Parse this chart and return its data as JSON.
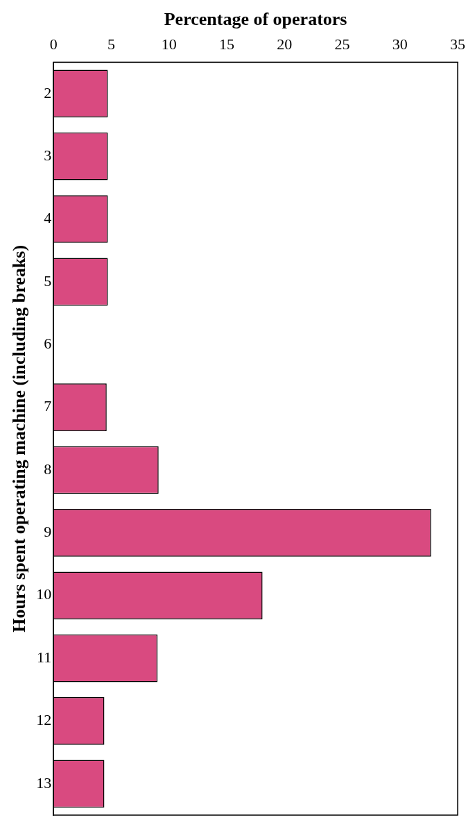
{
  "chart_data": {
    "type": "bar",
    "orientation": "horizontal",
    "xlabel": "Percentage of operators",
    "ylabel": "Hours spent operating machine (including breaks)",
    "categories": [
      "2",
      "3",
      "4",
      "5",
      "6",
      "7",
      "8",
      "9",
      "10",
      "11",
      "12",
      "13"
    ],
    "values": [
      4.7,
      4.7,
      4.7,
      4.7,
      0,
      4.6,
      9.1,
      32.7,
      18.1,
      9.0,
      4.4,
      4.4
    ],
    "color": "#d94a80",
    "xlim": [
      0,
      35
    ],
    "xticks": [
      0,
      5,
      10,
      15,
      20,
      25,
      30,
      35
    ],
    "grid": false,
    "legend": false
  }
}
